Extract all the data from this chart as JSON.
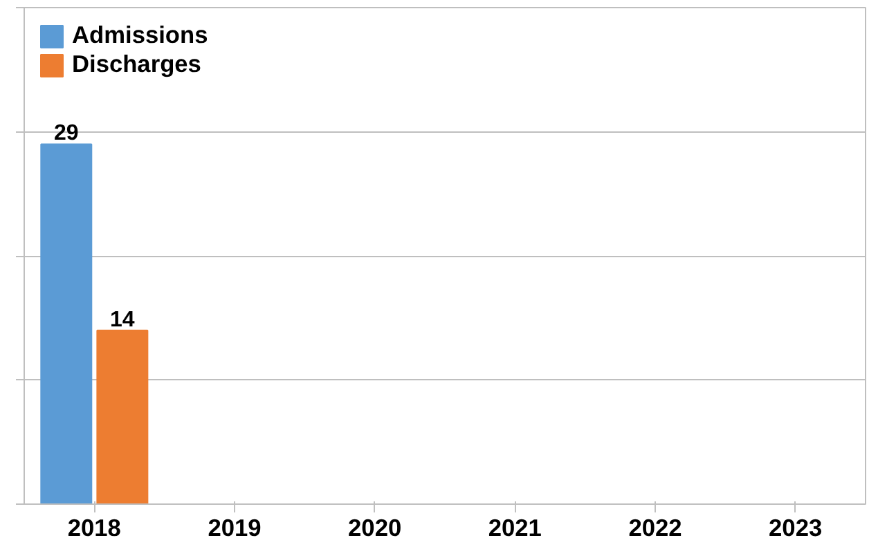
{
  "chart_data": {
    "type": "bar",
    "categories": [
      "2018",
      "2019",
      "2020",
      "2021",
      "2022",
      "2023"
    ],
    "series": [
      {
        "name": "Admissions",
        "color": "#5b9bd5",
        "values": [
          29,
          null,
          null,
          null,
          null,
          null
        ]
      },
      {
        "name": "Discharges",
        "color": "#ed7d31",
        "values": [
          14,
          null,
          null,
          null,
          null,
          null
        ]
      }
    ],
    "ylim": [
      0,
      40
    ],
    "yticks": [
      {
        "value": 0,
        "label": null
      },
      {
        "value": 10,
        "label": null
      },
      {
        "value": 20,
        "label": null
      },
      {
        "value": 30,
        "label": null
      },
      {
        "value": 40,
        "label": null
      }
    ],
    "tick_labels": "x",
    "grid": "y",
    "legend": "top left",
    "data_labels": true
  }
}
